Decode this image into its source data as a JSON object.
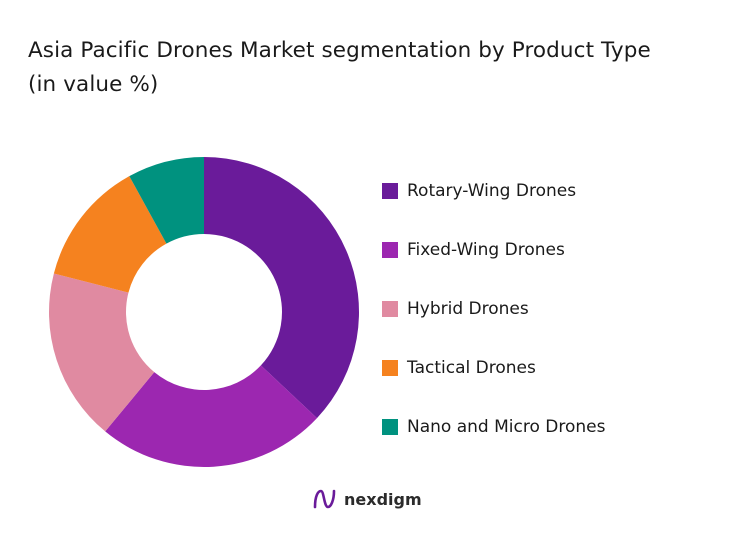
{
  "chart_data": {
    "type": "pie",
    "variant": "donut",
    "title_lines": [
      "Asia Pacific Drones Market segmentation by Product Type",
      "(in value %)"
    ],
    "legend_position": "right",
    "slices": [
      {
        "label": "Rotary-Wing Drones",
        "value": 37,
        "color": "#6a1b9a"
      },
      {
        "label": "Fixed-Wing Drones",
        "value": 24,
        "color": "#9c27b0"
      },
      {
        "label": "Hybrid Drones",
        "value": 18,
        "color": "#e08aa1"
      },
      {
        "label": "Tactical Drones",
        "value": 13,
        "color": "#f5821f"
      },
      {
        "label": "Nano and Micro Drones",
        "value": 8,
        "color": "#00927f"
      }
    ]
  },
  "brand": {
    "name": "nexdigm",
    "icon": "nexdigm-logo-icon"
  }
}
